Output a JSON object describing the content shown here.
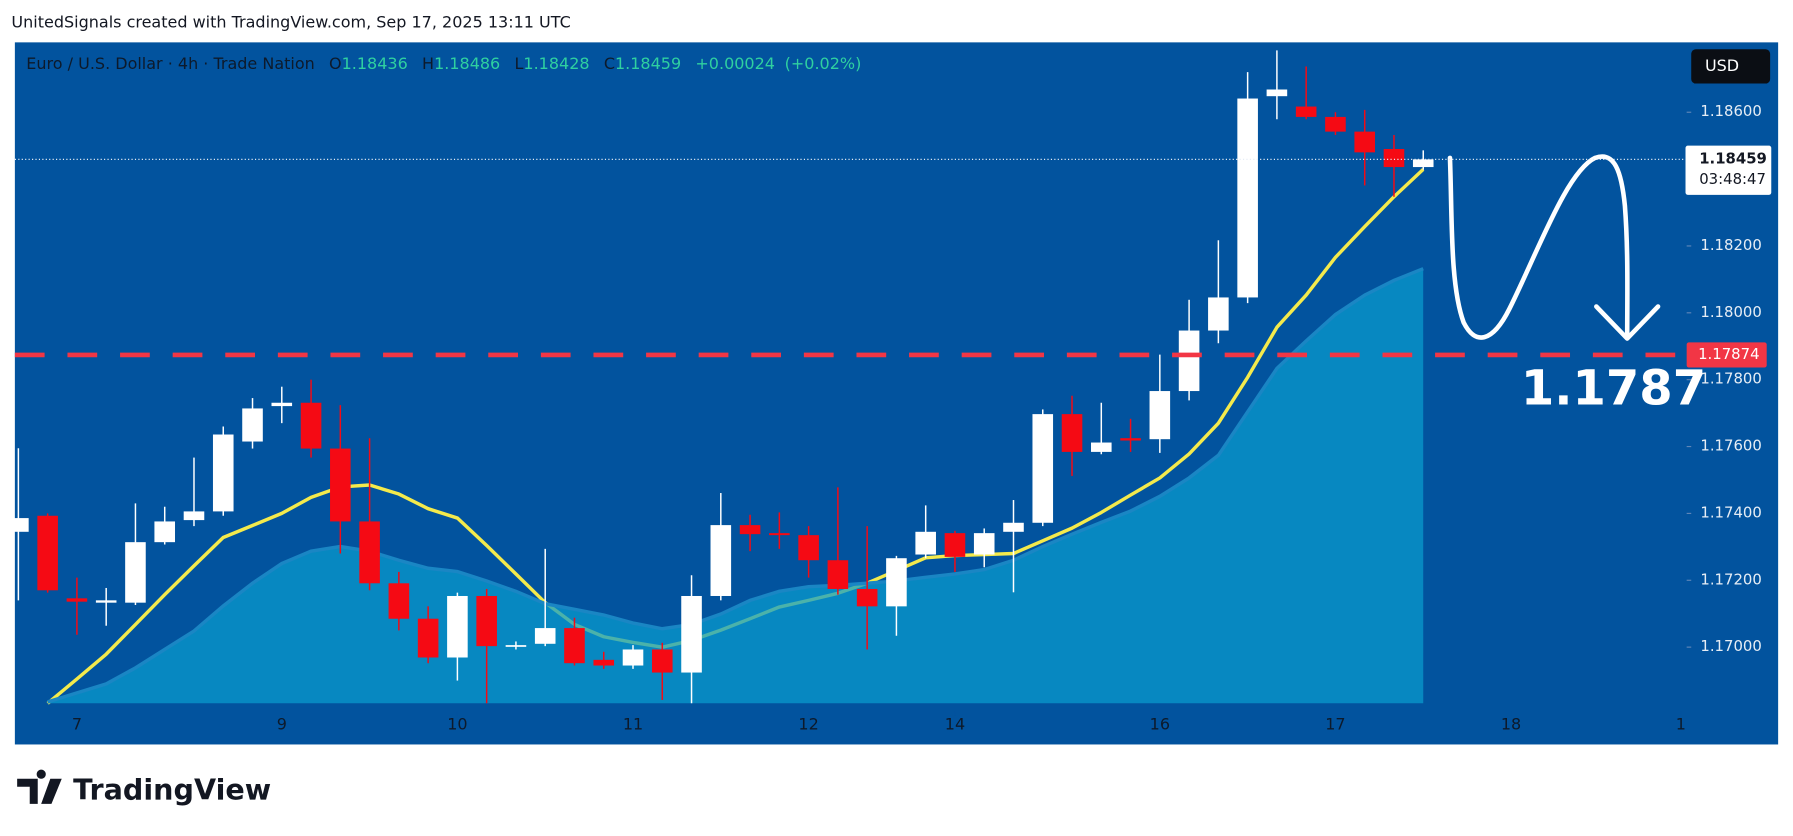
{
  "page": {
    "credit": "UnitedSignals created with TradingView.com, Sep 17, 2025 13:11 UTC",
    "logo": "TradingView"
  },
  "chart_data": {
    "type": "candlestick",
    "title": "Euro / U.S. Dollar · 4h · Trade Nation",
    "ohlc_labels": [
      "O",
      "H",
      "L",
      "C"
    ],
    "change": "+0.00024",
    "change_pct": "(+0.02%)",
    "currency": "USD",
    "countdown": "03:48:47",
    "annotation": "1.1787",
    "level": 1.17874,
    "level_color": "#f23645",
    "up_color": "#ffffff",
    "down_color": "#f50a14",
    "grid": false,
    "xlim": [
      -0.12,
      57
    ],
    "xticks": [
      {
        "value": 2,
        "label": "7"
      },
      {
        "value": 9,
        "label": "9"
      },
      {
        "value": 15,
        "label": "10"
      },
      {
        "value": 21,
        "label": "11"
      },
      {
        "value": 27,
        "label": "12"
      },
      {
        "value": 32,
        "label": "14"
      },
      {
        "value": 39,
        "label": "16"
      },
      {
        "value": 45,
        "label": "17"
      },
      {
        "value": 51,
        "label": "18"
      },
      {
        "value": 56.8,
        "label": "1"
      }
    ],
    "ylim": [
      1.16832,
      1.18809
    ],
    "yticks": [
      {
        "value": 1.17,
        "label": "1.17000"
      },
      {
        "value": 1.172,
        "label": "1.17200"
      },
      {
        "value": 1.174,
        "label": "1.17400"
      },
      {
        "value": 1.176,
        "label": "1.17600"
      },
      {
        "value": 1.178,
        "label": "1.17800"
      },
      {
        "value": 1.18,
        "label": "1.18000"
      },
      {
        "value": 1.182,
        "label": "1.18200"
      },
      {
        "value": 1.186,
        "label": "1.18600"
      }
    ],
    "open": [
      1.17345,
      1.17393,
      1.17146,
      1.17133,
      1.17133,
      1.17314,
      1.1738,
      1.17406,
      1.17615,
      1.17721,
      1.17731,
      1.17594,
      1.17376,
      1.17191,
      1.17085,
      1.16969,
      1.17153,
      1.17003,
      1.1701,
      1.17057,
      1.16962,
      1.16945,
      1.16993,
      1.16924,
      1.17153,
      1.17365,
      1.17341,
      1.17335,
      1.1726,
      1.17174,
      1.17122,
      1.17277,
      1.17341,
      1.17277,
      1.17345,
      1.17372,
      1.17697,
      1.17584,
      1.17625,
      1.17622,
      1.17766,
      1.17947,
      1.18046,
      1.18648,
      1.18617,
      1.18586,
      1.18542,
      1.1849,
      1.18436
    ],
    "high": [
      1.17595,
      1.174,
      1.17208,
      1.17177,
      1.1743,
      1.1742,
      1.17567,
      1.1766,
      1.17745,
      1.17779,
      1.178,
      1.17724,
      1.17625,
      1.17225,
      1.17122,
      1.17163,
      1.17174,
      1.17017,
      1.17294,
      1.17088,
      1.16986,
      1.17006,
      1.17013,
      1.17215,
      1.17461,
      1.17396,
      1.17403,
      1.17362,
      1.17478,
      1.17362,
      1.17273,
      1.17424,
      1.17348,
      1.17355,
      1.1744,
      1.17711,
      1.17752,
      1.17731,
      1.17683,
      1.17875,
      1.18039,
      1.18217,
      1.1872,
      1.18785,
      1.18737,
      1.186,
      1.18607,
      1.18532,
      1.18486
    ],
    "low": [
      1.1714,
      1.17163,
      1.17037,
      1.17064,
      1.17126,
      1.17307,
      1.17362,
      1.17393,
      1.17594,
      1.1767,
      1.17567,
      1.1728,
      1.1717,
      1.1705,
      1.16952,
      1.169,
      1.16832,
      1.16993,
      1.17003,
      1.16945,
      1.16935,
      1.16935,
      1.16842,
      1.16832,
      1.1714,
      1.17287,
      1.17294,
      1.17208,
      1.17157,
      1.16993,
      1.17034,
      1.17266,
      1.17225,
      1.17239,
      1.17164,
      1.17362,
      1.17512,
      1.17577,
      1.17584,
      1.17581,
      1.17738,
      1.17909,
      1.18029,
      1.18579,
      1.18579,
      1.18532,
      1.18381,
      1.18347,
      1.18428
    ],
    "close": [
      1.17386,
      1.1717,
      1.17136,
      1.1714,
      1.17314,
      1.17376,
      1.17406,
      1.17636,
      1.17714,
      1.17731,
      1.17594,
      1.17376,
      1.17191,
      1.17085,
      1.16969,
      1.17153,
      1.17003,
      1.17006,
      1.17057,
      1.16952,
      1.16945,
      1.16993,
      1.16924,
      1.17153,
      1.17365,
      1.17338,
      1.17335,
      1.1726,
      1.17174,
      1.17122,
      1.17266,
      1.17345,
      1.1727,
      1.17341,
      1.17372,
      1.17697,
      1.17584,
      1.17612,
      1.17618,
      1.17766,
      1.17947,
      1.18046,
      1.18641,
      1.18668,
      1.18586,
      1.18542,
      1.1848,
      1.18436,
      1.18459
    ],
    "moving_averages": [
      {
        "style": "line",
        "color": "#f4ea4c",
        "values": [
          null,
          1.16832,
          1.16905,
          1.16979,
          1.17068,
          1.17157,
          1.17243,
          1.17328,
          1.17364,
          1.174,
          1.17448,
          1.17479,
          1.17485,
          1.17458,
          1.17414,
          1.17386,
          1.17304,
          1.17219,
          1.17133,
          1.17068,
          1.17031,
          1.17014,
          1.17,
          1.1702,
          1.17051,
          1.17085,
          1.1712,
          1.1714,
          1.17161,
          1.17191,
          1.17229,
          1.17267,
          1.17274,
          1.17277,
          1.1728,
          1.17318,
          1.17356,
          1.17403,
          1.17455,
          1.17506,
          1.17578,
          1.1767,
          1.17807,
          1.17957,
          1.18053,
          1.18166,
          1.18258,
          1.18347,
          1.18429
        ]
      },
      {
        "style": "area",
        "color": "#0a9ccf",
        "values": [
          null,
          1.16836,
          1.16863,
          1.1689,
          1.16938,
          1.16993,
          1.17048,
          1.17123,
          1.17191,
          1.1725,
          1.17287,
          1.17301,
          1.17287,
          1.1726,
          1.17236,
          1.17226,
          1.17198,
          1.17167,
          1.1713,
          1.17113,
          1.17096,
          1.17072,
          1.17055,
          1.17068,
          1.17099,
          1.1714,
          1.17167,
          1.17181,
          1.17185,
          1.17191,
          1.17198,
          1.17209,
          1.17219,
          1.17232,
          1.1726,
          1.17301,
          1.17338,
          1.17373,
          1.17407,
          1.17451,
          1.17506,
          1.17574,
          1.17704,
          1.17834,
          1.17916,
          1.17995,
          1.18053,
          1.18097,
          1.18132
        ]
      }
    ]
  }
}
